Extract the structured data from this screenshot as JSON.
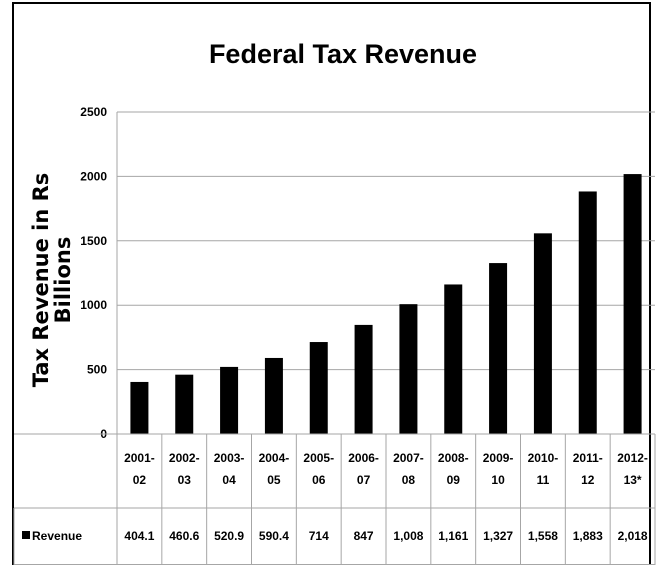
{
  "chart_data": {
    "type": "bar",
    "title": "Federal Tax Revenue",
    "ylabel_lines": [
      "Tax Revenue in Rs",
      "Billions"
    ],
    "xlabel": "",
    "ylim": [
      0,
      2500
    ],
    "yticks": [
      0,
      500,
      1000,
      1500,
      2000,
      2500
    ],
    "grid": true,
    "categories": [
      [
        "2001-",
        "02"
      ],
      [
        "2002-",
        "03"
      ],
      [
        "2003-",
        "04"
      ],
      [
        "2004-",
        "05"
      ],
      [
        "2005-",
        "06"
      ],
      [
        "2006-",
        "07"
      ],
      [
        "2007-",
        "08"
      ],
      [
        "2008-",
        "09"
      ],
      [
        "2009-",
        "10"
      ],
      [
        "2010-",
        "11"
      ],
      [
        "2011-",
        "12"
      ],
      [
        "2012-",
        "13*"
      ]
    ],
    "series": [
      {
        "name": "Revenue",
        "color": "#000000",
        "values": [
          404.1,
          460.6,
          520.9,
          590.4,
          714,
          847,
          1008,
          1161,
          1327,
          1558,
          1883,
          2018
        ],
        "labels": [
          "404.1",
          "460.6",
          "520.9",
          "590.4",
          "714",
          "847",
          "1,008",
          "1,161",
          "1,327",
          "1,558",
          "1,883",
          "2,018"
        ]
      }
    ],
    "legend": "data-table"
  }
}
